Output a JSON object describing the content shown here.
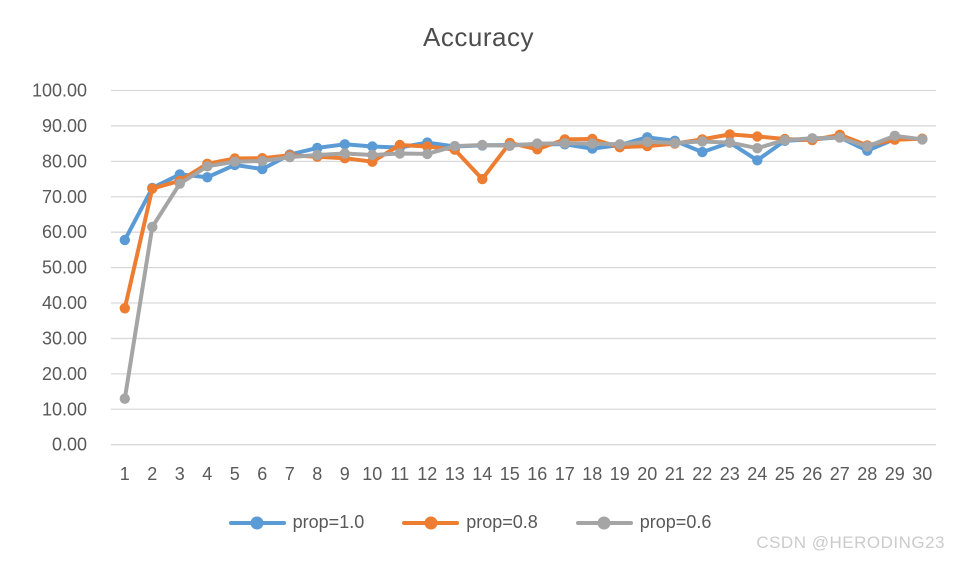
{
  "watermark": "CSDN @HERODING23",
  "colors": {
    "background": "#ffffff",
    "title_text": "#4d4d4d",
    "axis_text": "#595959",
    "gridline": "#d9d9d9",
    "watermark_text": "#cbcbcb"
  },
  "chart_data": {
    "type": "line",
    "title": "Accuracy",
    "xlabel": "",
    "ylabel": "",
    "grid": true,
    "legend_position": "bottom",
    "marker": "circle",
    "ylim": [
      0,
      100
    ],
    "categories": [
      "1",
      "2",
      "3",
      "4",
      "5",
      "6",
      "7",
      "8",
      "9",
      "10",
      "11",
      "12",
      "13",
      "14",
      "15",
      "16",
      "17",
      "18",
      "19",
      "20",
      "21",
      "22",
      "23",
      "24",
      "25",
      "26",
      "27",
      "28",
      "29",
      "30"
    ],
    "y_ticks": [
      {
        "value": 0,
        "label": "0.00"
      },
      {
        "value": 10,
        "label": "10.00"
      },
      {
        "value": 20,
        "label": "20.00"
      },
      {
        "value": 30,
        "label": "30.00"
      },
      {
        "value": 40,
        "label": "40.00"
      },
      {
        "value": 50,
        "label": "50.00"
      },
      {
        "value": 60,
        "label": "60.00"
      },
      {
        "value": 70,
        "label": "70.00"
      },
      {
        "value": 80,
        "label": "80.00"
      },
      {
        "value": 90,
        "label": "90.00"
      },
      {
        "value": 100,
        "label": "100.00"
      }
    ],
    "series": [
      {
        "name": "prop=1.0",
        "color": "#5B9BD5",
        "values": [
          57.8,
          72.5,
          76.3,
          75.5,
          79.0,
          77.8,
          81.9,
          83.8,
          84.8,
          84.2,
          83.9,
          85.3,
          84.2,
          84.5,
          84.6,
          84.8,
          84.8,
          83.6,
          84.6,
          86.8,
          85.8,
          82.6,
          85.3,
          80.3,
          85.8,
          86.2,
          86.8,
          83.0,
          86.3,
          86.3
        ]
      },
      {
        "name": "prop=0.8",
        "color": "#ED7D31",
        "values": [
          38.5,
          72.3,
          74.5,
          79.3,
          80.8,
          80.9,
          81.7,
          81.3,
          80.9,
          79.9,
          84.6,
          84.2,
          83.3,
          75.0,
          85.2,
          83.4,
          86.2,
          86.3,
          84.0,
          84.3,
          85.0,
          86.2,
          87.6,
          87.0,
          86.3,
          86.0,
          87.5,
          84.5,
          86.1,
          86.4
        ]
      },
      {
        "name": "prop=0.6",
        "color": "#A5A5A5",
        "values": [
          13.0,
          61.5,
          73.7,
          78.6,
          79.9,
          80.1,
          81.2,
          81.8,
          82.2,
          81.8,
          82.2,
          82.1,
          84.3,
          84.6,
          84.4,
          85.0,
          85.1,
          85.0,
          84.8,
          85.5,
          85.2,
          85.6,
          85.3,
          83.7,
          86.0,
          86.5,
          86.7,
          84.2,
          87.2,
          86.2
        ]
      }
    ]
  }
}
